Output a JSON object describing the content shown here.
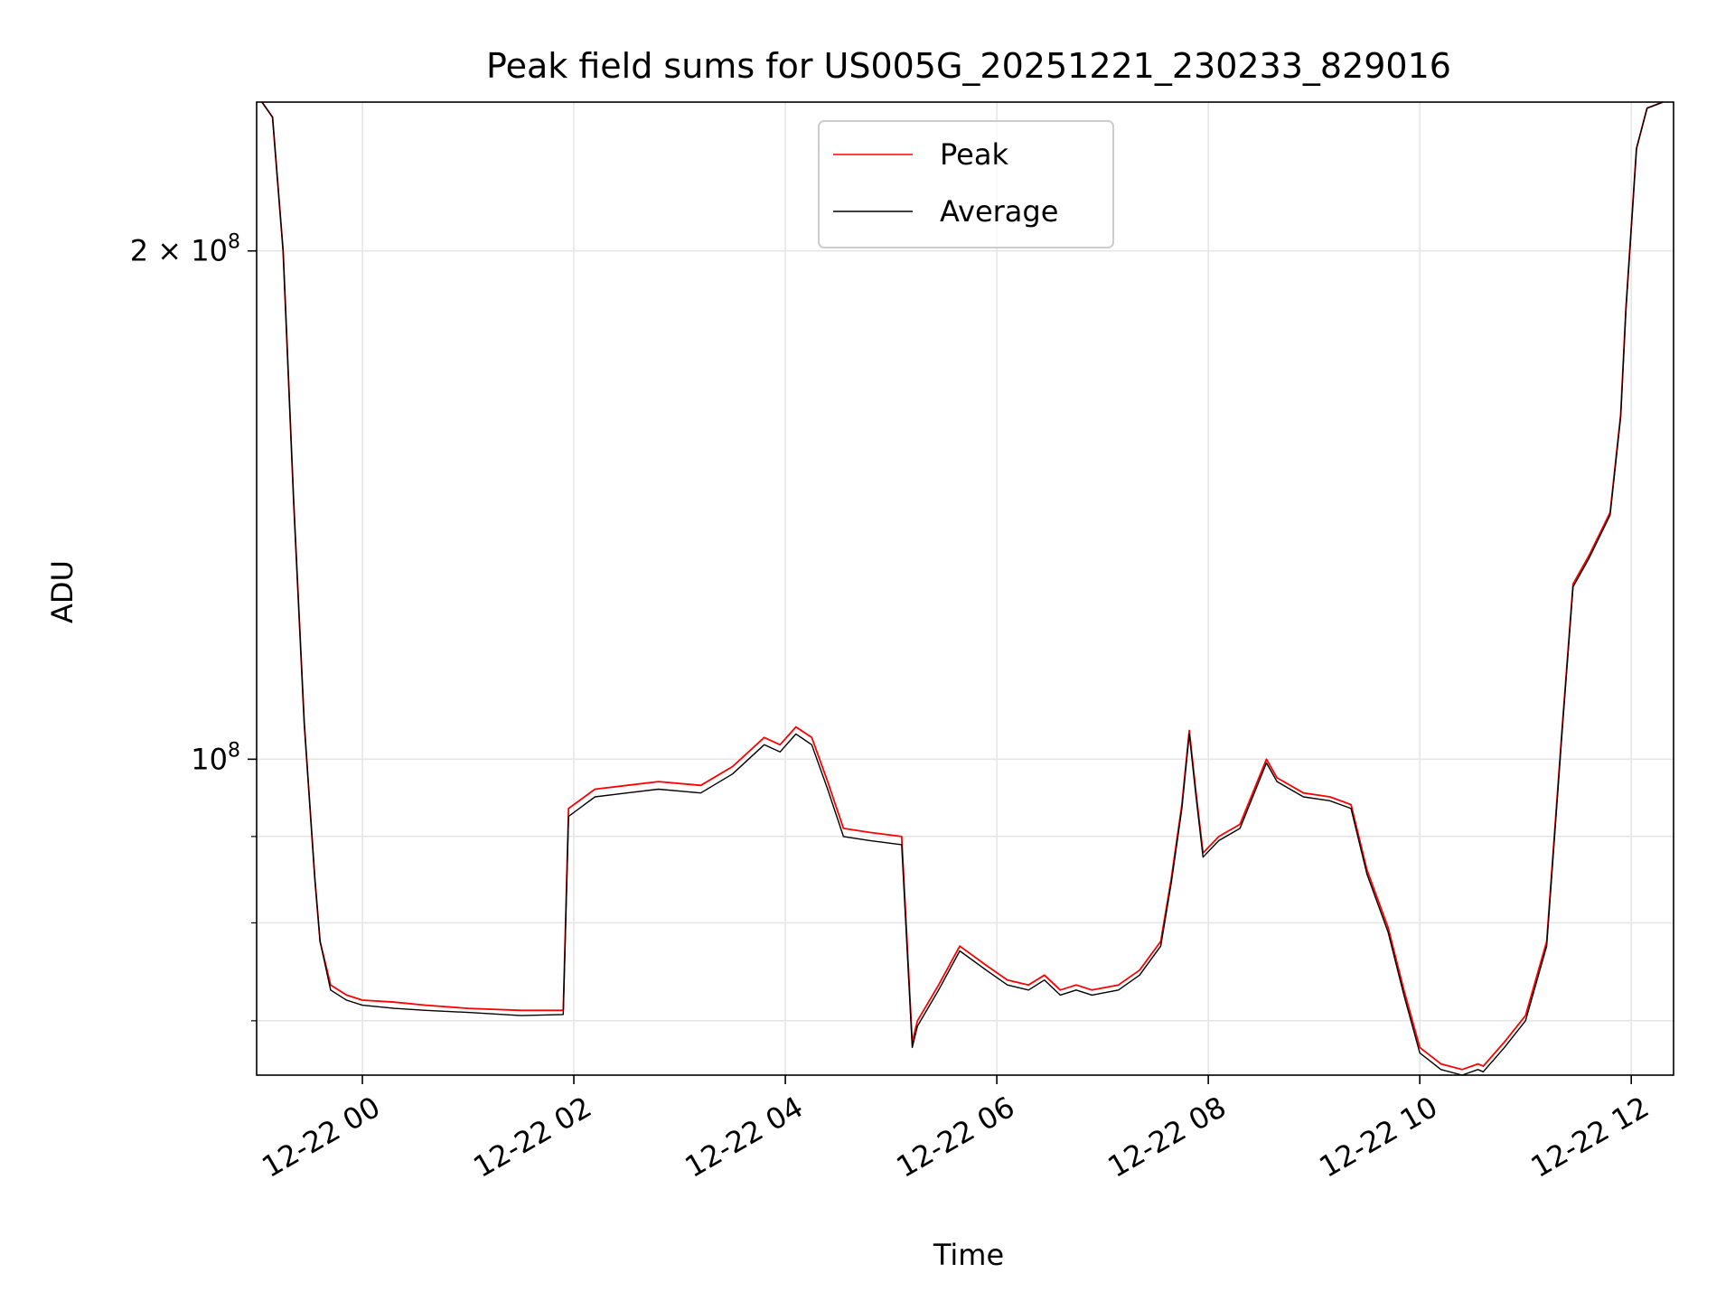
{
  "chart_data": {
    "type": "line",
    "title": "Peak field sums for US005G_20251221_230233_829016",
    "xlabel": "Time",
    "ylabel": "ADU",
    "y_scale": "log",
    "x_unit": "hours",
    "xlim": [
      -1.0,
      12.4
    ],
    "ylim": [
      65000000,
      245000000
    ],
    "grid": true,
    "legend_position": "top-center",
    "x_ticks": [
      {
        "value": 0,
        "label": "12-22 00"
      },
      {
        "value": 2,
        "label": "12-22 02"
      },
      {
        "value": 4,
        "label": "12-22 04"
      },
      {
        "value": 6,
        "label": "12-22 06"
      },
      {
        "value": 8,
        "label": "12-22 08"
      },
      {
        "value": 10,
        "label": "12-22 10"
      },
      {
        "value": 12,
        "label": "12-22 12"
      }
    ],
    "y_major_ticks": [
      {
        "value": 100000000,
        "base": "10",
        "exp": "8",
        "mult": ""
      },
      {
        "value": 200000000,
        "base": "10",
        "exp": "8",
        "mult": "2 × "
      }
    ],
    "y_minor_ticks": [
      70000000,
      80000000,
      90000000
    ],
    "series": [
      {
        "name": "Peak",
        "color": "#ff0000",
        "x": [
          -0.95,
          -0.85,
          -0.75,
          -0.65,
          -0.55,
          -0.45,
          -0.4,
          -0.3,
          -0.15,
          0.0,
          0.3,
          0.6,
          1.0,
          1.5,
          1.9,
          1.95,
          2.2,
          2.5,
          2.8,
          3.2,
          3.5,
          3.8,
          3.95,
          4.1,
          4.25,
          4.4,
          4.55,
          4.8,
          5.1,
          5.2,
          5.25,
          5.45,
          5.65,
          5.9,
          6.1,
          6.3,
          6.45,
          6.6,
          6.75,
          6.9,
          7.15,
          7.35,
          7.55,
          7.65,
          7.75,
          7.82,
          7.88,
          7.95,
          8.1,
          8.3,
          8.55,
          8.65,
          8.9,
          9.15,
          9.35,
          9.5,
          9.7,
          9.85,
          10.0,
          10.2,
          10.4,
          10.55,
          10.6,
          10.8,
          11.0,
          11.2,
          11.35,
          11.45,
          11.6,
          11.8,
          11.9,
          11.95,
          12.05,
          12.15,
          12.3
        ],
        "y": [
          245000000,
          240000000,
          200000000,
          142000000,
          105000000,
          85000000,
          78000000,
          73500000,
          72500000,
          72000000,
          71800000,
          71500000,
          71200000,
          71000000,
          71000000,
          93500000,
          96000000,
          96500000,
          97000000,
          96500000,
          99000000,
          103000000,
          102000000,
          104500000,
          103000000,
          97000000,
          91000000,
          90500000,
          90000000,
          68000000,
          70000000,
          73500000,
          77500000,
          75500000,
          74000000,
          73500000,
          74500000,
          73000000,
          73500000,
          73000000,
          73500000,
          75000000,
          78000000,
          85000000,
          94000000,
          104000000,
          96000000,
          88000000,
          90000000,
          91500000,
          100000000,
          97500000,
          95500000,
          95000000,
          94000000,
          86000000,
          79500000,
          73000000,
          67500000,
          66000000,
          65500000,
          66000000,
          65800000,
          68000000,
          70500000,
          78000000,
          105000000,
          127000000,
          132000000,
          140000000,
          160000000,
          185000000,
          230000000,
          243000000,
          245000000
        ]
      },
      {
        "name": "Average",
        "color": "#000000",
        "x": [
          -0.95,
          -0.85,
          -0.75,
          -0.65,
          -0.55,
          -0.45,
          -0.4,
          -0.3,
          -0.15,
          0.0,
          0.3,
          0.6,
          1.0,
          1.5,
          1.9,
          1.95,
          2.2,
          2.5,
          2.8,
          3.2,
          3.5,
          3.8,
          3.95,
          4.1,
          4.25,
          4.4,
          4.55,
          4.8,
          5.1,
          5.2,
          5.25,
          5.45,
          5.65,
          5.9,
          6.1,
          6.3,
          6.45,
          6.6,
          6.75,
          6.9,
          7.15,
          7.35,
          7.55,
          7.65,
          7.75,
          7.82,
          7.88,
          7.95,
          8.1,
          8.3,
          8.55,
          8.65,
          8.9,
          9.15,
          9.35,
          9.5,
          9.7,
          9.85,
          10.0,
          10.2,
          10.4,
          10.55,
          10.6,
          10.8,
          11.0,
          11.2,
          11.35,
          11.45,
          11.6,
          11.8,
          11.9,
          11.95,
          12.05,
          12.15,
          12.3
        ],
        "y": [
          245000000,
          240000000,
          200000000,
          142000000,
          105000000,
          85000000,
          78000000,
          73000000,
          72000000,
          71500000,
          71200000,
          71000000,
          70800000,
          70500000,
          70600000,
          92500000,
          95000000,
          95500000,
          96000000,
          95500000,
          98000000,
          102000000,
          101000000,
          103500000,
          102000000,
          96000000,
          90000000,
          89500000,
          89000000,
          67500000,
          69500000,
          73000000,
          77000000,
          75000000,
          73500000,
          73000000,
          74000000,
          72500000,
          73000000,
          72500000,
          73000000,
          74500000,
          77500000,
          84500000,
          93500000,
          103500000,
          95500000,
          87500000,
          89500000,
          91000000,
          99500000,
          97000000,
          95000000,
          94500000,
          93500000,
          85500000,
          79000000,
          72500000,
          67000000,
          65500000,
          65000000,
          65500000,
          65300000,
          67500000,
          70000000,
          77500000,
          104500000,
          126500000,
          131500000,
          139500000,
          159500000,
          184500000,
          230000000,
          243000000,
          245000000
        ]
      }
    ]
  }
}
